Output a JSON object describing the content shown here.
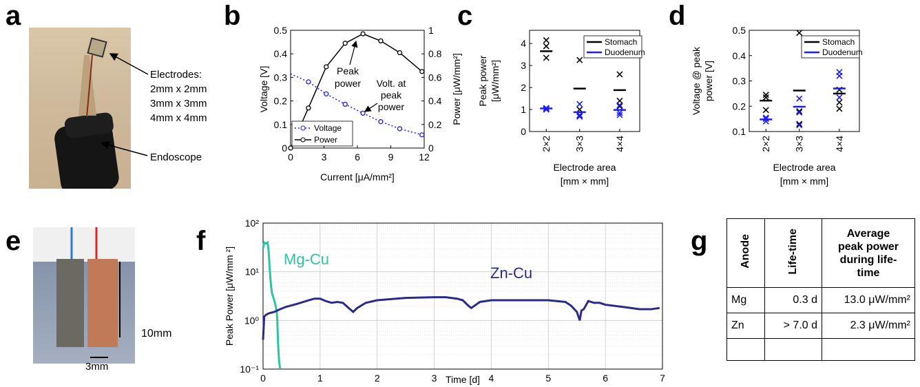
{
  "panels": {
    "a": "a",
    "b": "b",
    "c": "c",
    "d": "d",
    "e": "e",
    "f": "f",
    "g": "g"
  },
  "panel_a": {
    "electrodes_lines": [
      "Electrodes:",
      "2mm x 2mm",
      "3mm x 3mm",
      "4mm x 4mm"
    ],
    "endoscope": "Endoscope"
  },
  "panel_e": {
    "scale_10mm": "10mm",
    "scale_3mm": "3mm"
  },
  "colors": {
    "voltage": "#1a1aff",
    "power": "#000000",
    "stomach": "#000000",
    "duodenum": "#1a1aff",
    "mgcu": "#2ec4a0",
    "zncu": "#2b2a8a"
  },
  "chart_data": [
    {
      "id": "b",
      "type": "line",
      "xlabel": "Current [μA/mm²]",
      "ylabel_left": "Voltage [V]",
      "ylabel_right": "Power [μW/mm²]",
      "xlim": [
        0,
        12
      ],
      "ylim_left": [
        0,
        0.5
      ],
      "ylim_right": [
        0,
        1
      ],
      "xticks": [
        "0",
        "3",
        "6",
        "9",
        "12"
      ],
      "yticks_left": [
        "0",
        "0.1",
        "0.2",
        "0.3",
        "0.4",
        "0.5"
      ],
      "yticks_right": [
        "0",
        "0.2",
        "0.4",
        "0.6",
        "0.8",
        "1"
      ],
      "series": [
        {
          "name": "Voltage",
          "axis": "left",
          "style": "dotted",
          "x": [
            1.6,
            3.2,
            4.9,
            6.5,
            8.1,
            9.8,
            11.8
          ],
          "y": [
            0.281,
            0.23,
            0.186,
            0.148,
            0.112,
            0.082,
            0.056
          ]
        },
        {
          "name": "Power",
          "axis": "right",
          "style": "solid",
          "x": [
            0,
            1.6,
            3.2,
            4.9,
            6.5,
            8.1,
            9.8,
            11.8
          ],
          "y": [
            0,
            0.34,
            0.69,
            0.89,
            0.97,
            0.91,
            0.81,
            0.65
          ]
        }
      ],
      "voltage_line_start": 0.315,
      "annotations": [
        "Peak",
        "power",
        "Volt. at",
        "peak",
        "power"
      ],
      "legend": [
        "Voltage",
        "Power"
      ]
    },
    {
      "id": "c",
      "type": "scatter",
      "ylabel_lines": [
        "Peak power",
        "[μW/mm²]"
      ],
      "xlabel_lines": [
        "Electrode area",
        "[mm × mm]"
      ],
      "ylim": [
        0,
        4.6
      ],
      "yticks": [
        "0",
        "1",
        "2",
        "3",
        "4"
      ],
      "categories": [
        "2×2",
        "3×3",
        "4×4"
      ],
      "x_positions": [
        2,
        3,
        4.2
      ],
      "xlim": [
        1.5,
        4.8
      ],
      "legend": [
        "Stomach",
        "Duodenum"
      ],
      "series": [
        {
          "name": "Stomach",
          "points": [
            [
              4.15,
              3.88,
              3.35
            ],
            [
              3.25,
              1.0,
              0.7
            ],
            [
              2.6,
              1.4,
              1.15
            ]
          ],
          "mean": [
            3.65,
            1.95,
            1.88
          ]
        },
        {
          "name": "Duodenum",
          "points": [
            [
              1.07,
              1.0,
              1.03
            ],
            [
              1.25,
              0.75,
              0.68
            ],
            [
              1.2,
              0.85,
              0.75
            ]
          ],
          "mean": [
            1.05,
            0.88,
            0.98
          ]
        }
      ]
    },
    {
      "id": "d",
      "type": "scatter",
      "ylabel_lines": [
        "Voltage @ peak",
        "power [V]"
      ],
      "xlabel_lines": [
        "Electrode area",
        "[mm × mm]"
      ],
      "ylim": [
        0.1,
        0.5
      ],
      "yticks": [
        "0.1",
        "0.2",
        "0.3",
        "0.4",
        "0.5"
      ],
      "categories": [
        "2×2",
        "3×3",
        "4×4"
      ],
      "x_positions": [
        2,
        3,
        4.2
      ],
      "xlim": [
        1.5,
        4.8
      ],
      "legend": [
        "Stomach",
        "Duodenum"
      ],
      "series": [
        {
          "name": "Stomach",
          "points": [
            [
              0.245,
              0.235,
              0.185
            ],
            [
              0.49,
              0.18,
              0.13
            ],
            [
              0.265,
              0.215,
              0.19
            ]
          ],
          "mean": [
            0.222,
            0.262,
            0.25
          ]
        },
        {
          "name": "Duodenum",
          "points": [
            [
              0.155,
              0.14,
              0.15
            ],
            [
              0.23,
              0.175,
              0.125
            ],
            [
              0.335,
              0.32,
              0.235
            ]
          ],
          "mean": [
            0.148,
            0.198,
            0.27
          ]
        }
      ]
    },
    {
      "id": "f",
      "type": "line",
      "log_y": true,
      "xlabel": "Time [d]",
      "ylabel": "Peak Power [μW/mm ²]",
      "xlim": [
        0,
        7
      ],
      "ylim": [
        0.1,
        100
      ],
      "xticks": [
        "0",
        "1",
        "2",
        "3",
        "4",
        "5",
        "6",
        "7"
      ],
      "yticks": [
        "10⁻¹",
        "10⁰",
        "10¹",
        "10²"
      ],
      "series": [
        {
          "name": "Mg-Cu",
          "x": [
            0,
            0.02,
            0.05,
            0.08,
            0.1,
            0.12,
            0.14,
            0.16,
            0.18,
            0.2,
            0.22,
            0.24,
            0.25,
            0.26,
            0.28,
            0.3
          ],
          "y": [
            30,
            40,
            38,
            40,
            25,
            10,
            5,
            3.5,
            3,
            2.5,
            2,
            1.5,
            1,
            0.4,
            0.15,
            0.1
          ]
        },
        {
          "name": "Zn-Cu",
          "x": [
            0,
            0.02,
            0.05,
            0.1,
            0.2,
            0.3,
            0.4,
            0.6,
            0.8,
            0.9,
            1.0,
            1.1,
            1.2,
            1.3,
            1.4,
            1.5,
            1.58,
            1.65,
            1.8,
            2.0,
            2.5,
            3.0,
            3.2,
            3.4,
            3.5,
            3.6,
            3.65,
            3.8,
            4.0,
            4.5,
            5.0,
            5.3,
            5.4,
            5.5,
            5.55,
            5.58,
            5.62,
            5.7,
            5.8,
            5.9,
            6.0,
            6.3,
            6.6,
            6.8,
            6.95
          ],
          "y": [
            0.4,
            1.2,
            1.3,
            1.4,
            1.5,
            1.7,
            1.9,
            2.2,
            2.6,
            2.8,
            2.8,
            2.5,
            2.3,
            2.4,
            2.3,
            1.8,
            1.5,
            1.8,
            2.3,
            2.6,
            2.9,
            3.0,
            3.0,
            2.8,
            2.6,
            2.0,
            1.8,
            2.4,
            2.6,
            2.6,
            2.6,
            2.4,
            2.0,
            1.5,
            1.0,
            1.6,
            1.7,
            2.5,
            2.3,
            2.3,
            2.1,
            1.9,
            1.7,
            1.7,
            1.8
          ]
        }
      ],
      "labels": [
        "Mg-Cu",
        "Zn-Cu"
      ]
    },
    {
      "id": "g",
      "type": "table",
      "columns": [
        "Anode",
        "Life-time",
        "Average peak power during life-time"
      ],
      "header_lines": [
        "Average",
        "peak power",
        "during life-",
        "time"
      ],
      "rows": [
        [
          "Mg",
          "0.3 d",
          "13.0 μW/mm²"
        ],
        [
          "Zn",
          "> 7.0 d",
          "2.3 μW/mm²"
        ],
        [
          "",
          "",
          ""
        ]
      ]
    }
  ]
}
